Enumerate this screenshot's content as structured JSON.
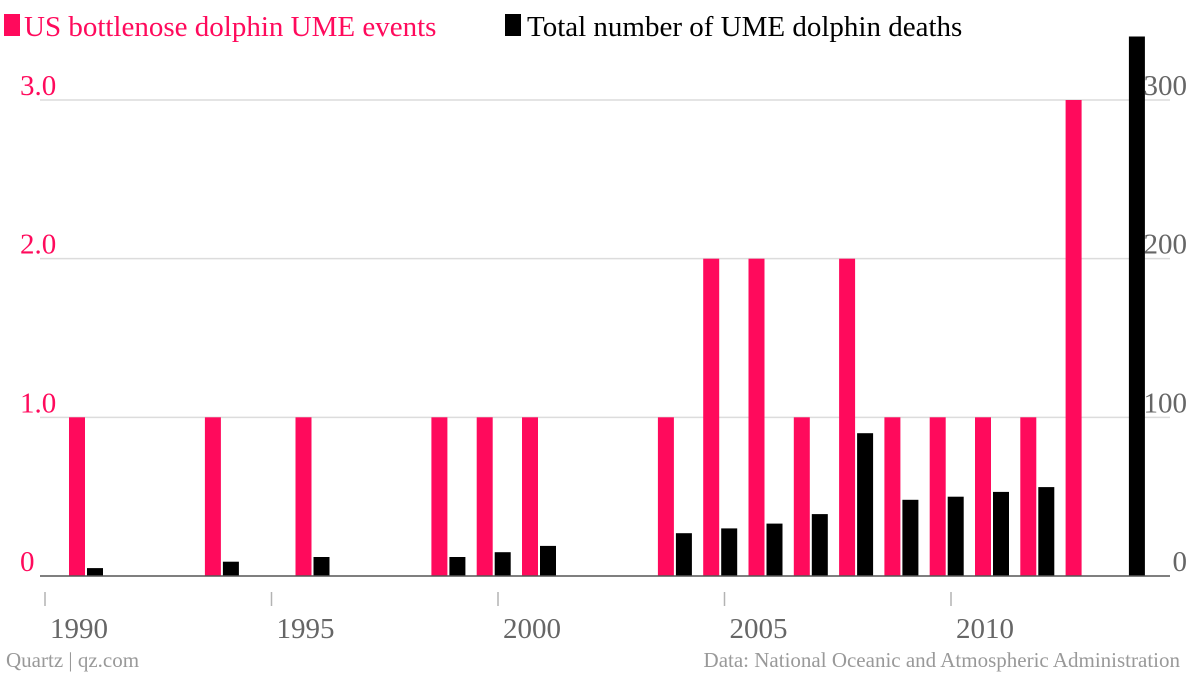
{
  "colors": {
    "events": "#ff0a5c",
    "deaths": "#000000",
    "grid": "#dcdcdc",
    "axis": "#b3b3b3",
    "tick_text": "#666666",
    "footer_text": "#999999"
  },
  "legend": [
    {
      "label": "US bottlenose dolphin UME events",
      "color": "#ff0a5c"
    },
    {
      "label": "Total number of UME dolphin deaths",
      "color": "#000000"
    }
  ],
  "footer": {
    "source_left": "Quartz | qz.com",
    "source_right": "Data: National Oceanic and Atmospheric Administration"
  },
  "chart_data": {
    "type": "bar",
    "grid": true,
    "legend_position": "top-left",
    "categories": [
      1990,
      1991,
      1992,
      1993,
      1994,
      1995,
      1996,
      1997,
      1998,
      1999,
      2000,
      2001,
      2002,
      2003,
      2004,
      2005,
      2006,
      2007,
      2008,
      2009,
      2010,
      2011,
      2012,
      2013
    ],
    "x_ticks": [
      "1990",
      "1995",
      "2000",
      "2005",
      "2010"
    ],
    "series": [
      {
        "name": "US bottlenose dolphin UME events",
        "axis": "left",
        "values": [
          1,
          0,
          0,
          1,
          0,
          1,
          0,
          0,
          1,
          1,
          1,
          0,
          0,
          1,
          2,
          2,
          1,
          2,
          1,
          1,
          1,
          1,
          3,
          0
        ]
      },
      {
        "name": "Total number of UME dolphin deaths",
        "axis": "right",
        "values": [
          5,
          0,
          0,
          9,
          0,
          12,
          0,
          0,
          12,
          15,
          19,
          0,
          0,
          27,
          30,
          33,
          39,
          90,
          48,
          50,
          53,
          56,
          0,
          340
        ]
      }
    ],
    "y_left": {
      "ylim": [
        0,
        3.0
      ],
      "ticks": [
        0,
        1.0,
        2.0,
        3.0
      ],
      "tick_labels": [
        "0",
        "1.0",
        "2.0",
        "3.0"
      ]
    },
    "y_right": {
      "ylim": [
        0,
        300
      ],
      "ticks": [
        0,
        100,
        200,
        300
      ],
      "tick_labels": [
        "0",
        "100",
        "200",
        "300"
      ]
    }
  }
}
